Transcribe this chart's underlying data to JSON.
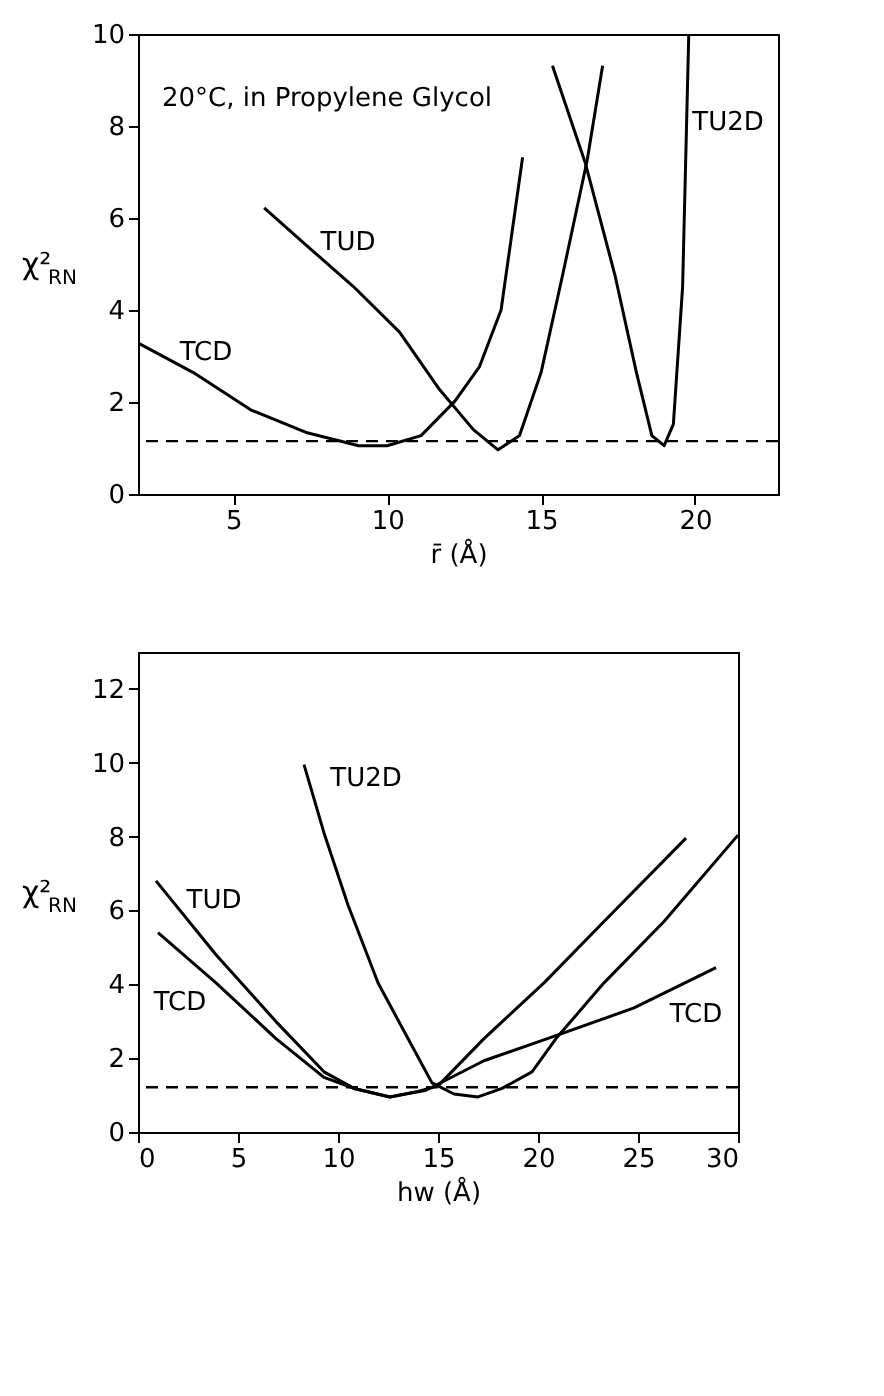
{
  "chart_data": [
    {
      "type": "line",
      "xlabel": "r̄ (Å)",
      "ylabel": "χ²$_{RN}$",
      "xlim": [
        1.9,
        22.7
      ],
      "ylim": [
        0,
        10
      ],
      "xticks": [
        5,
        10,
        15,
        20
      ],
      "yticks": [
        0,
        2,
        4,
        6,
        8,
        10
      ],
      "grid": false,
      "marker": "none",
      "line_style": "solid",
      "series": [
        {
          "color": "#000000",
          "x": [
            1.94,
            3.7,
            5.56,
            7.4,
            9.07,
            10,
            11.1,
            12.2,
            13,
            13.7,
            14.4
          ],
          "values": [
            3.27,
            2.64,
            1.83,
            1.33,
            1.05,
            1.05,
            1.27,
            2.02,
            2.77,
            4.0,
            7.32
          ]
        },
        {
          "color": "#000000",
          "x": [
            6.0,
            7.4,
            8.9,
            10.4,
            11.7,
            12.8,
            13.6,
            14.3,
            15,
            15.7,
            16.5,
            17
          ],
          "values": [
            6.22,
            5.39,
            4.51,
            3.52,
            2.27,
            1.4,
            0.96,
            1.27,
            2.64,
            4.76,
            7.26,
            9.31
          ]
        },
        {
          "color": "#000000",
          "x": [
            15.37,
            16.44,
            17.4,
            18.1,
            18.6,
            19.0,
            19.3,
            19.6,
            19.8
          ],
          "values": [
            9.31,
            7.19,
            4.76,
            2.64,
            1.27,
            1.05,
            1.52,
            4.51,
            10
          ]
        }
      ],
      "ref_lines": [
        {
          "axis": "y",
          "value": 1.15,
          "color": "#000000",
          "line_style": "dashed"
        }
      ],
      "annotations": [
        "20°C, in Propylene Glycol",
        "TCD",
        "TUD",
        "TU2D"
      ]
    },
    {
      "type": "line",
      "xlabel": "hw (Å)",
      "ylabel": "χ²$_{RN}$",
      "xlim": [
        0,
        30
      ],
      "ylim": [
        0,
        13
      ],
      "xticks": [
        0,
        5,
        10,
        15,
        20,
        25,
        30
      ],
      "yticks": [
        0,
        2,
        4,
        6,
        8,
        10,
        12
      ],
      "grid": false,
      "marker": "none",
      "line_style": "solid",
      "series": [
        {
          "color": "#000000",
          "x": [
            1,
            3.9,
            6.9,
            9.3,
            10.8,
            12.6,
            14.4,
            17.3,
            20.9,
            24.8,
            28.9
          ],
          "values": [
            5.4,
            4.04,
            2.53,
            1.48,
            1.18,
            0.95,
            1.13,
            1.93,
            2.61,
            3.36,
            4.45
          ]
        },
        {
          "color": "#000000",
          "x": [
            0.9,
            3.9,
            6.9,
            9.3,
            10.8,
            12.6,
            14.0,
            15,
            17.3,
            20.3,
            23.3,
            27.4
          ],
          "values": [
            6.8,
            4.8,
            2.99,
            1.63,
            1.18,
            0.95,
            1.1,
            1.25,
            2.53,
            4.04,
            5.7,
            7.96
          ]
        },
        {
          "color": "#000000",
          "x": [
            8.3,
            9.3,
            10.5,
            12,
            13.5,
            14.7,
            15.8,
            17,
            18.2,
            19.7,
            20.9,
            23.3,
            26.3,
            30
          ],
          "values": [
            9.95,
            8.1,
            6.15,
            4.04,
            2.53,
            1.33,
            1.03,
            0.95,
            1.18,
            1.63,
            2.53,
            4.04,
            5.7,
            8.04
          ]
        }
      ],
      "ref_lines": [
        {
          "axis": "y",
          "value": 1.21,
          "color": "#000000",
          "line_style": "dashed"
        }
      ],
      "annotations": [
        "TU2D",
        "TUD",
        "TCD",
        "TCD"
      ]
    }
  ]
}
